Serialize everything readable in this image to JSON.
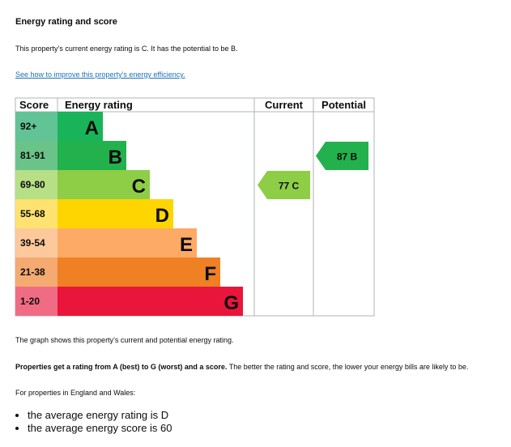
{
  "heading": "Energy rating and score",
  "current_text": "This property’s current energy rating is C. It has the potential to be B.",
  "improve_link": "See how to improve this property’s energy efficiency.",
  "graph_caption": "The graph shows this property’s current and potential energy rating.",
  "scale_bold": "Properties get a rating from A (best) to G (worst) and a score.",
  "scale_rest": " The better the rating and score, the lower your energy bills are likely to be.",
  "region_text": "For properties in England and Wales:",
  "average_items": [
    "the average energy rating is D",
    "the average energy score is 60"
  ],
  "chart_data": {
    "type": "table",
    "columns": [
      "Score",
      "Energy rating",
      "Current",
      "Potential"
    ],
    "bands": [
      {
        "score": "92+",
        "rating": "A",
        "color": "#19b459",
        "light": "#62c396"
      },
      {
        "score": "81-91",
        "rating": "B",
        "color": "#22b14c",
        "light": "#6ac489"
      },
      {
        "score": "69-80",
        "rating": "C",
        "color": "#8dce46",
        "light": "#b6df86"
      },
      {
        "score": "55-68",
        "rating": "D",
        "color": "#ffd500",
        "light": "#ffe26f"
      },
      {
        "score": "39-54",
        "rating": "E",
        "color": "#fcaa65",
        "light": "#fdc89b"
      },
      {
        "score": "21-38",
        "rating": "F",
        "color": "#ef8023",
        "light": "#f4aa70"
      },
      {
        "score": "1-20",
        "rating": "G",
        "color": "#e9153b",
        "light": "#f06c84"
      }
    ],
    "current": {
      "score": 77,
      "rating": "C",
      "label": "77  C",
      "color": "#8dce46"
    },
    "potential": {
      "score": 87,
      "rating": "B",
      "label": "87  B",
      "color": "#22b14c"
    }
  }
}
